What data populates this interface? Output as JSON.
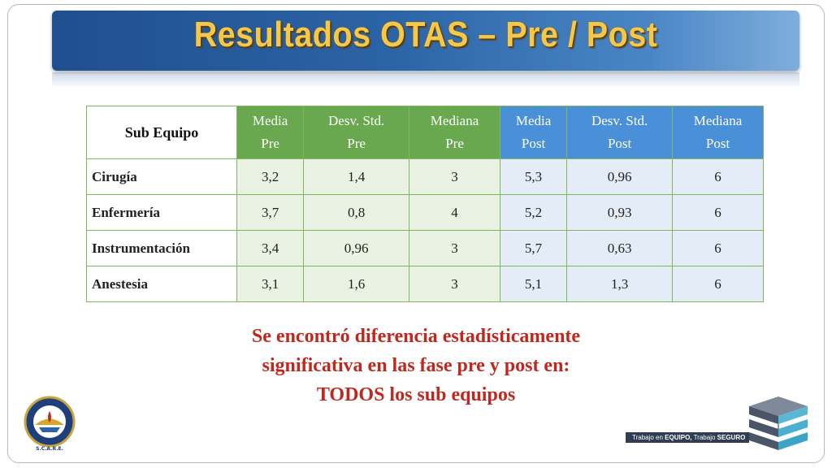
{
  "slide": {
    "title": "Resultados  OTAS – Pre / Post"
  },
  "table": {
    "headers": {
      "sub_equipo": "Sub Equipo",
      "pre": [
        {
          "line1": "Media",
          "line2": "Pre"
        },
        {
          "line1": "Desv. Std.",
          "line2": "Pre"
        },
        {
          "line1": "Mediana",
          "line2": "Pre"
        }
      ],
      "post": [
        {
          "line1": "Media",
          "line2": "Post"
        },
        {
          "line1": "Desv. Std.",
          "line2": "Post"
        },
        {
          "line1": "Mediana",
          "line2": "Post"
        }
      ]
    },
    "rows": [
      {
        "name": "Cirugía",
        "media_pre": "3,2",
        "desv_pre": "1,4",
        "mediana_pre": "3",
        "media_post": "5,3",
        "desv_post": "0,96",
        "mediana_post": "6"
      },
      {
        "name": "Enfermería",
        "media_pre": "3,7",
        "desv_pre": "0,8",
        "mediana_pre": "4",
        "media_post": "5,2",
        "desv_post": "0,93",
        "mediana_post": "6"
      },
      {
        "name": "Instrumentación",
        "media_pre": "3,4",
        "desv_pre": "0,96",
        "mediana_pre": "3",
        "media_post": "5,7",
        "desv_post": "0,63",
        "mediana_post": "6"
      },
      {
        "name": "Anestesia",
        "media_pre": "3,1",
        "desv_pre": "1,6",
        "mediana_pre": "3",
        "media_post": "5,1",
        "desv_post": "1,3",
        "mediana_post": "6"
      }
    ]
  },
  "conclusion": {
    "line1": "Se encontró diferencia estadísticamente",
    "line2": "significativa en las fase pre y post en:",
    "line3": "TODOS  los sub equipos"
  },
  "logo": {
    "top_text": "ANAESTHESIA",
    "bottom_text": "DEORUM ARS",
    "caption": "S.C.A.R.E."
  },
  "tagline": {
    "part1": "Trabajo en ",
    "part2": "EQUIPO,",
    "part3": " Trabajo ",
    "part4": "SEGURO"
  },
  "colors": {
    "title": "#f6c84a",
    "banner": "#2b64a6",
    "pre_header": "#6aa84f",
    "post_header": "#4a90d9",
    "conclusion": "#c0281e"
  }
}
